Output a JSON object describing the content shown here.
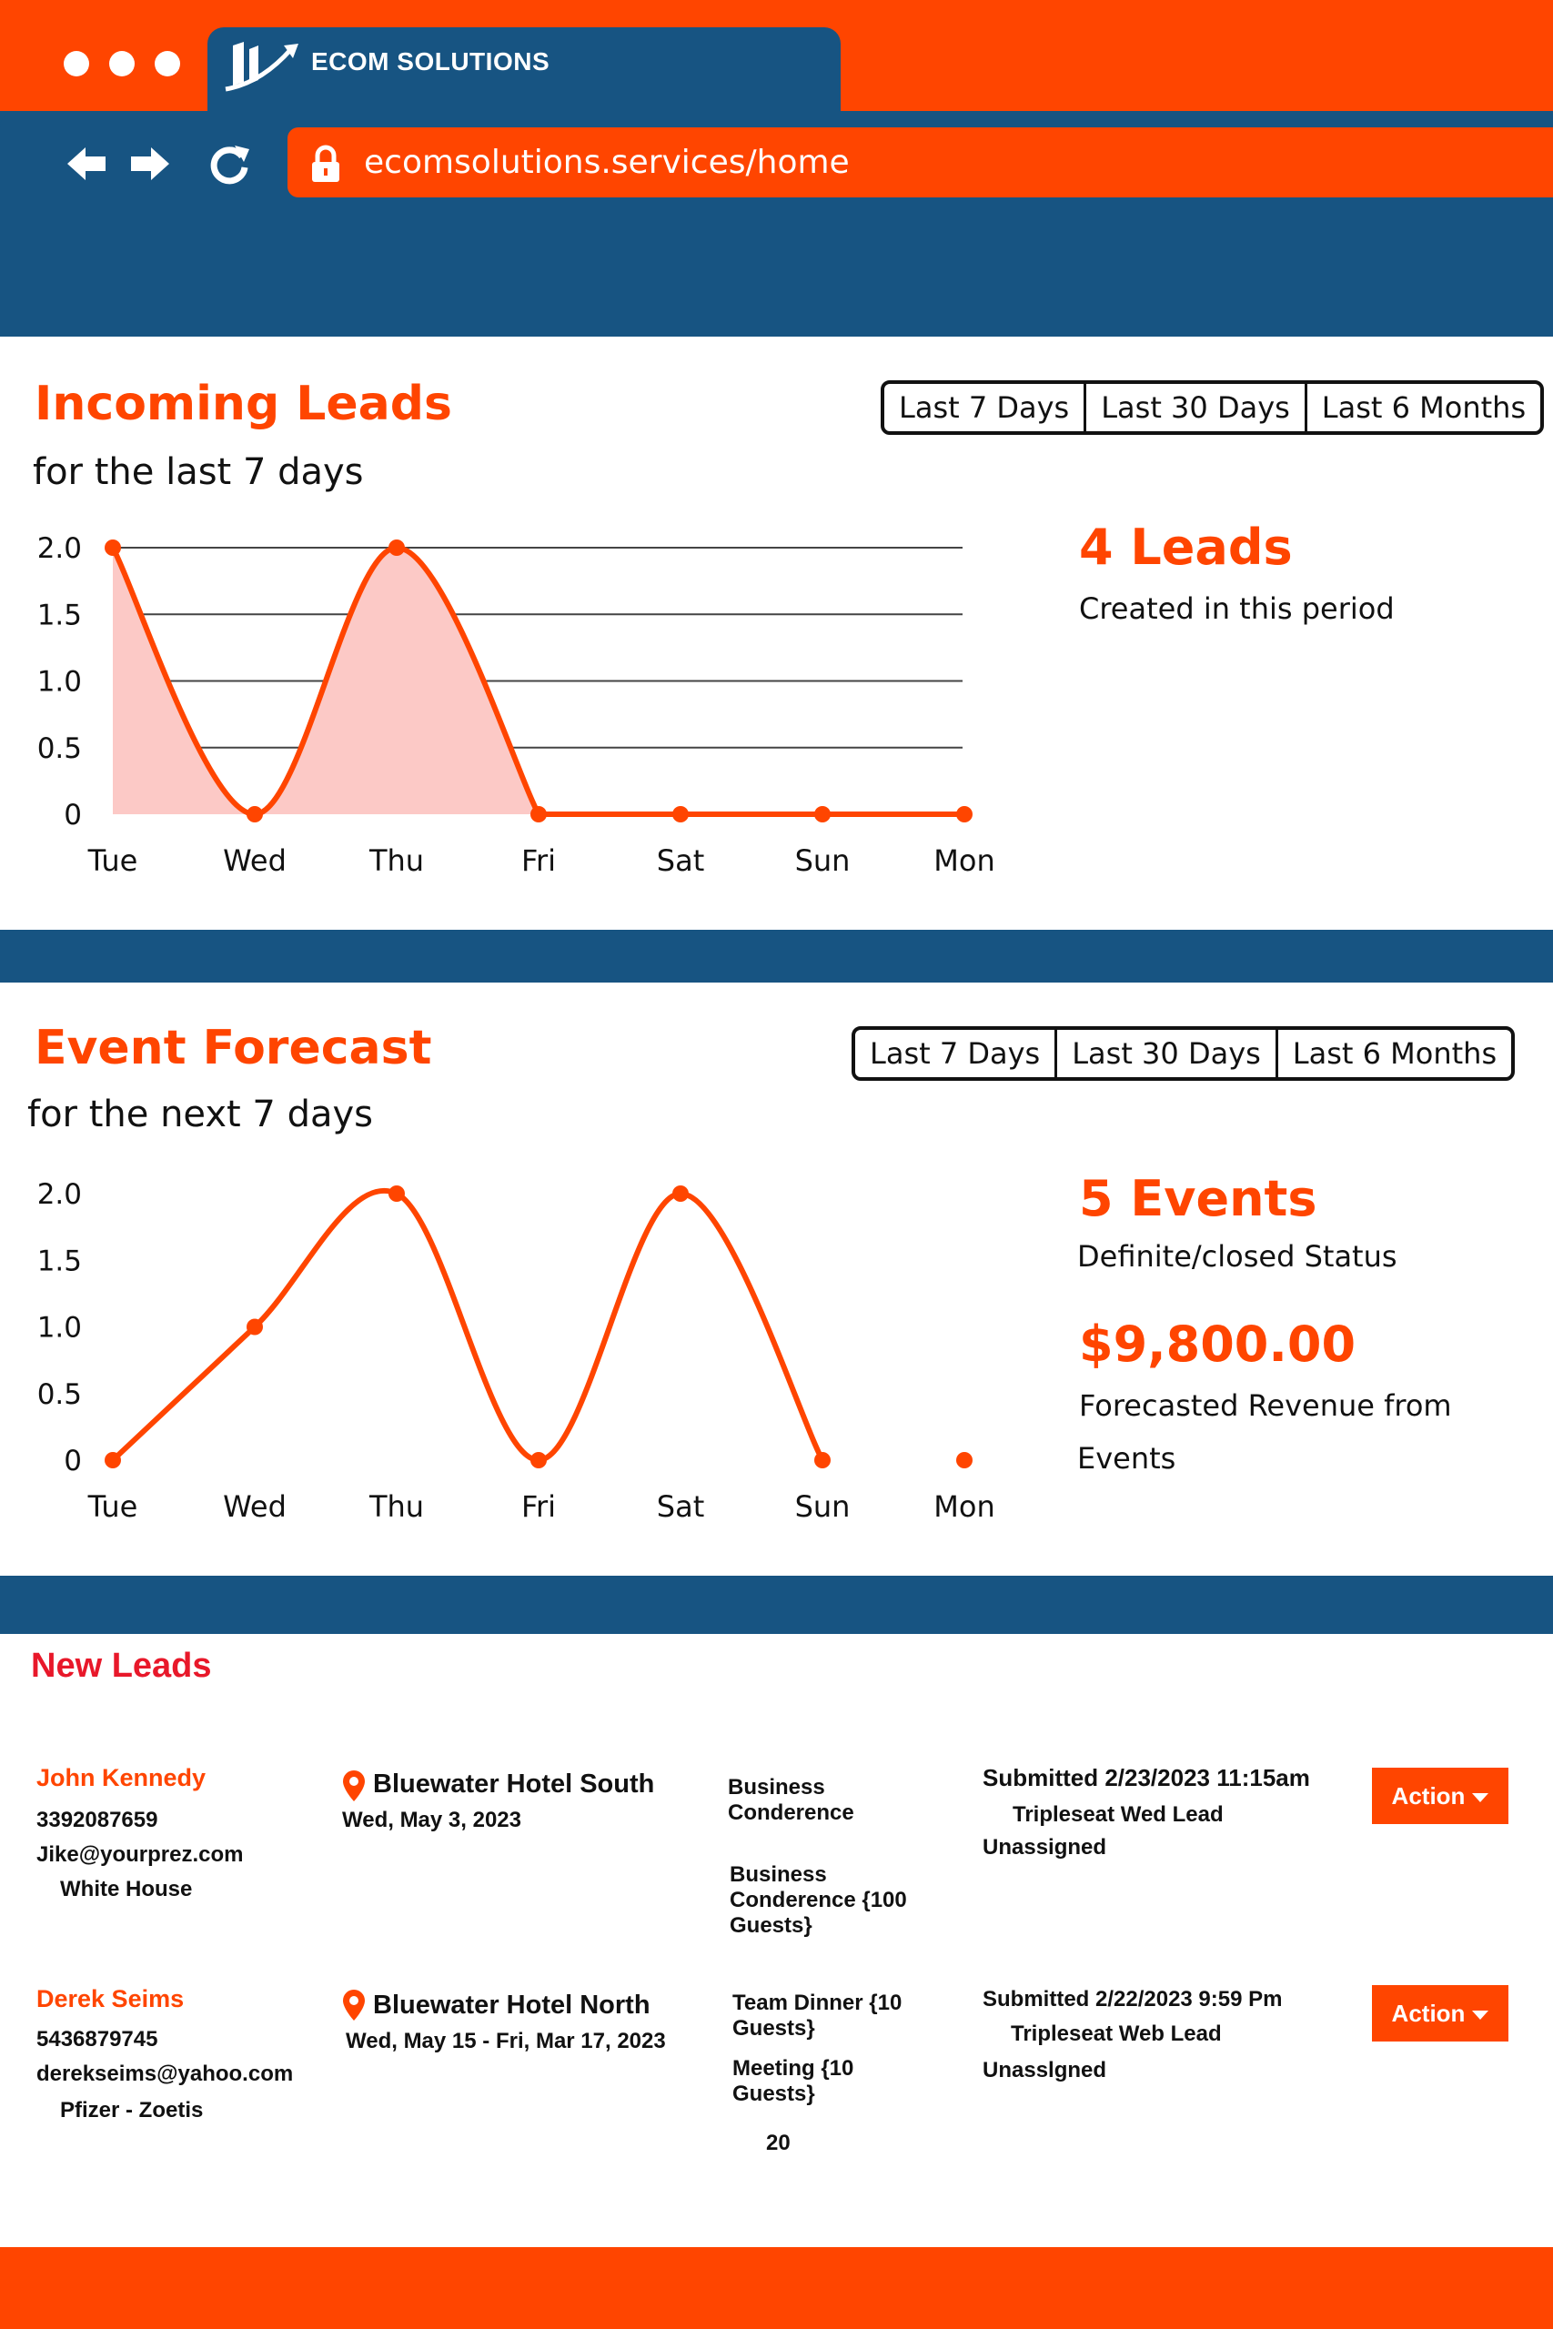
{
  "browser": {
    "tab_title": "ECOM SOLUTIONS",
    "url": "ecomsolutions.services/home",
    "icons": [
      "back-arrow-icon",
      "forward-arrow-icon",
      "reload-icon",
      "lock-icon"
    ]
  },
  "filters": [
    "Last 7 Days",
    "Last 30 Days",
    "Last 6 Months"
  ],
  "incoming_leads": {
    "title": "Incoming Leads",
    "subtitle": "for the last 7 days",
    "kpi_value": "4 Leads",
    "kpi_label": "Created in this period"
  },
  "event_forecast": {
    "title": "Event Forecast",
    "subtitle": "for the next 7 days",
    "kpi_value": "5 Events",
    "kpi_label": "Definite/closed Status",
    "revenue_value": "$9,800.00",
    "revenue_label_1": "Forecasted Revenue from",
    "revenue_label_2": "Events"
  },
  "chart_data": [
    {
      "type": "area",
      "title": "Incoming Leads",
      "categories": [
        "Tue",
        "Wed",
        "Thu",
        "Fri",
        "Sat",
        "Sun",
        "Mon"
      ],
      "values": [
        2,
        0,
        2,
        0,
        0,
        0,
        0
      ],
      "yticks": [
        "2.0",
        "1.5",
        "1.0",
        "0.5",
        "0"
      ],
      "ylim": [
        0,
        2
      ],
      "grid": true,
      "color": "#FF4500",
      "fill": "#FCC9C6"
    },
    {
      "type": "line",
      "title": "Event Forecast",
      "categories": [
        "Tue",
        "Wed",
        "Thu",
        "Fri",
        "Sat",
        "Sun",
        "Mon"
      ],
      "values": [
        0,
        1,
        2,
        0,
        2,
        0,
        0
      ],
      "yticks": [
        "2.0",
        "1.5",
        "1.0",
        "0.5",
        "0"
      ],
      "ylim": [
        0,
        2
      ],
      "grid": false,
      "color": "#FF4500"
    }
  ],
  "new_leads": {
    "title": "New Leads",
    "action_label": "Action",
    "rows": [
      {
        "name": "John Kennedy",
        "phone": "3392087659",
        "email": "Jike@yourprez.com",
        "company": "White House",
        "venue": "Bluewater Hotel South",
        "date": "Wed, May 3, 2023",
        "type_1": "Business\nConderence",
        "type_2": "Business\nConderence {100\nGuests}",
        "count": "",
        "submitted": "Submitted 2/23/2023 11:15am",
        "source": "Tripleseat Wed Lead",
        "owner": "Unassigned"
      },
      {
        "name": "Derek Seims",
        "phone": "5436879745",
        "email": "derekseims@yahoo.com",
        "company": "Pfizer - Zoetis",
        "venue": "Bluewater Hotel North",
        "date": "Wed, May 15 - Fri, Mar 17, 2023",
        "type_1": "Team Dinner {10\nGuests}",
        "type_2": "Meeting {10\nGuests}",
        "count": "20",
        "submitted": "Submitted 2/22/2023 9:59 Pm",
        "source": "Tripleseat Web Lead",
        "owner": "Unasslgned"
      }
    ]
  },
  "colors": {
    "accent": "#FF4500",
    "navy": "#175482",
    "leads_title": "#E8182A"
  }
}
